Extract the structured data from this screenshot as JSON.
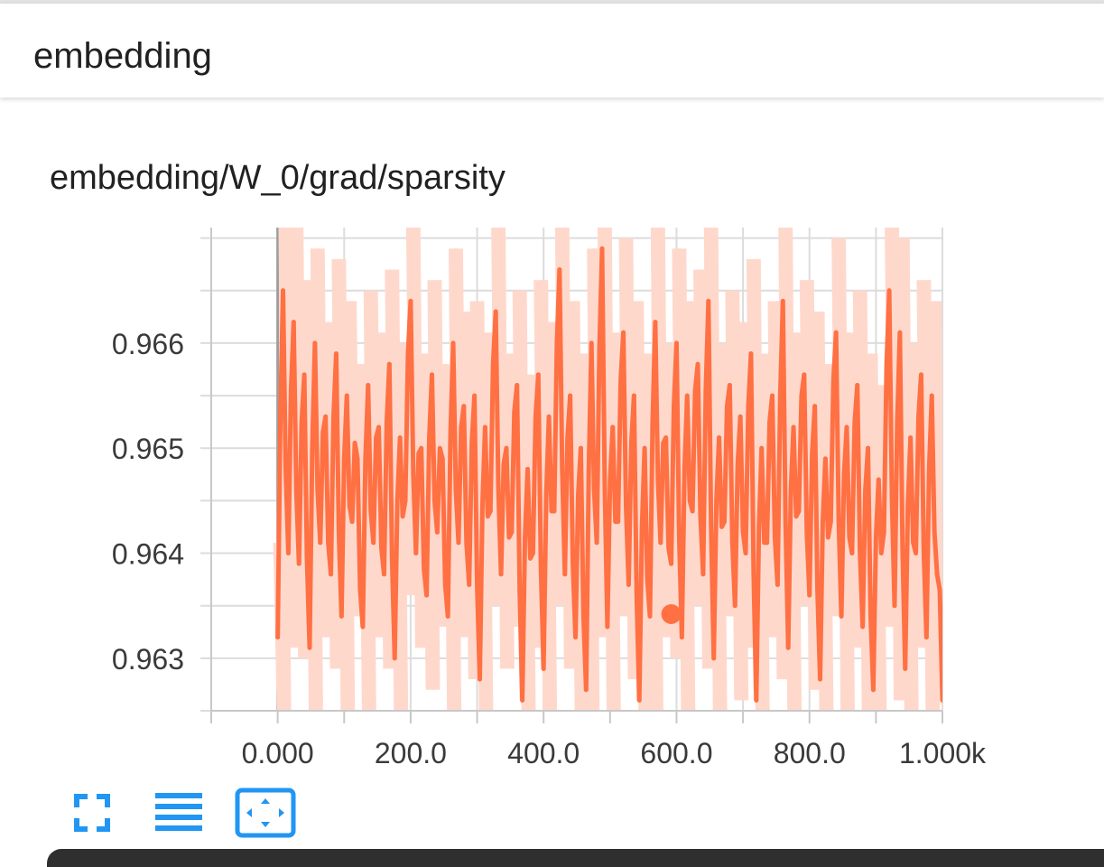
{
  "header": {
    "title": "embedding"
  },
  "chart_data": {
    "type": "line",
    "title": "embedding/W_0/grad/sparsity",
    "xlabel": "",
    "ylabel": "",
    "x_range": [
      -100,
      1000
    ],
    "y_range": [
      0.9625,
      0.9671
    ],
    "x_ticks": [
      0,
      200,
      400,
      600,
      800,
      1000
    ],
    "x_tick_labels": [
      "0.000",
      "200.0",
      "400.0",
      "600.0",
      "800.0",
      "1.000k"
    ],
    "y_ticks": [
      0.963,
      0.964,
      0.965,
      0.966
    ],
    "y_tick_labels": [
      "0.963",
      "0.964",
      "0.965",
      "0.966"
    ],
    "grid": true,
    "series": [
      {
        "color": "#ff7043",
        "raw_color": "#ffd8cc",
        "x": [
          0,
          8,
          16,
          24,
          32,
          40,
          48,
          56,
          64,
          72,
          80,
          88,
          96,
          104,
          112,
          120,
          128,
          136,
          144,
          152,
          160,
          168,
          176,
          184,
          192,
          200,
          208,
          216,
          224,
          232,
          240,
          248,
          256,
          264,
          272,
          280,
          288,
          296,
          304,
          312,
          320,
          328,
          336,
          344,
          352,
          360,
          368,
          376,
          384,
          392,
          400,
          408,
          416,
          424,
          432,
          440,
          448,
          456,
          464,
          472,
          480,
          488,
          496,
          504,
          512,
          520,
          528,
          536,
          544,
          552,
          560,
          568,
          576,
          584,
          592,
          600,
          608,
          616,
          624,
          632,
          640,
          648,
          656,
          664,
          672,
          680,
          688,
          696,
          704,
          712,
          720,
          728,
          736,
          744,
          752,
          760,
          768,
          776,
          784,
          792,
          800,
          808,
          816,
          824,
          832,
          840,
          848,
          856,
          864,
          872,
          880,
          888,
          896,
          904,
          912,
          920,
          928,
          936,
          944,
          952,
          960,
          968,
          976,
          984,
          992,
          1000
        ],
        "y": [
          0.9632,
          0.9665,
          0.964,
          0.9662,
          0.9639,
          0.9657,
          0.9631,
          0.966,
          0.9641,
          0.9653,
          0.9638,
          0.9659,
          0.9634,
          0.9655,
          0.9643,
          0.9649,
          0.9633,
          0.9656,
          0.9641,
          0.9652,
          0.9638,
          0.9658,
          0.963,
          0.9651,
          0.9645,
          0.9664,
          0.964,
          0.965,
          0.9636,
          0.9657,
          0.9642,
          0.9649,
          0.9634,
          0.966,
          0.9641,
          0.9654,
          0.9637,
          0.9655,
          0.9628,
          0.9652,
          0.9644,
          0.9663,
          0.9638,
          0.965,
          0.9642,
          0.9656,
          0.9626,
          0.9648,
          0.964,
          0.9657,
          0.9629,
          0.9653,
          0.9644,
          0.9667,
          0.9638,
          0.9655,
          0.9632,
          0.965,
          0.9627,
          0.966,
          0.9641,
          0.9669,
          0.9633,
          0.9652,
          0.9643,
          0.9661,
          0.9637,
          0.9655,
          0.9626,
          0.965,
          0.9634,
          0.9662,
          0.9641,
          0.9651,
          0.9639,
          0.966,
          0.9632,
          0.9655,
          0.9644,
          0.9658,
          0.9638,
          0.9664,
          0.963,
          0.9651,
          0.9643,
          0.9656,
          0.9635,
          0.9653,
          0.964,
          0.9659,
          0.9626,
          0.965,
          0.9641,
          0.9655,
          0.9637,
          0.9664,
          0.9631,
          0.9652,
          0.9644,
          0.9657,
          0.9636,
          0.9654,
          0.9628,
          0.9649,
          0.9643,
          0.9661,
          0.9634,
          0.9652,
          0.964,
          0.9656,
          0.9633,
          0.965,
          0.9627,
          0.9647,
          0.9642,
          0.9665,
          0.9635,
          0.9661,
          0.9629,
          0.9651,
          0.964,
          0.9657,
          0.9632,
          0.9655,
          0.9638,
          0.9626
        ]
      }
    ],
    "highlight_point": {
      "x": 592,
      "y": 0.96342
    }
  },
  "toolbar": {
    "icons": [
      "fullscreen-icon",
      "menu-lines-icon",
      "fit-domain-icon"
    ],
    "accent_color": "#2196f3"
  },
  "colors": {
    "grid": "#dcdcdc",
    "axis": "#c8c8c8",
    "text": "#212121",
    "zero_line": "#9e9e9e"
  }
}
